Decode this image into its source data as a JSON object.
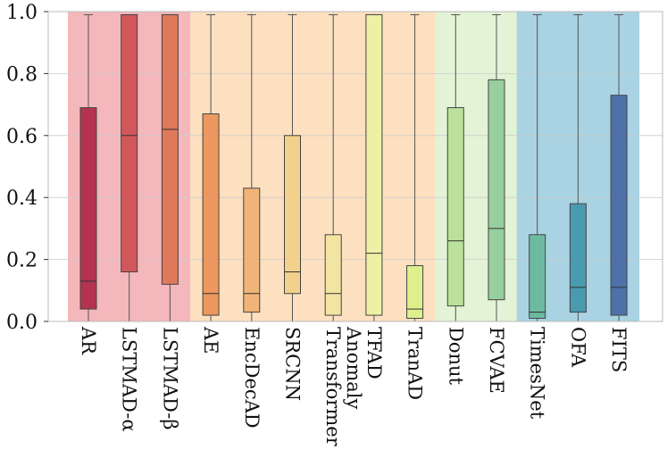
{
  "chart_data": {
    "type": "box",
    "title": "",
    "xlabel": "",
    "ylabel": "",
    "ylim": [
      0.0,
      1.0
    ],
    "yticks": [
      "0.0",
      "0.2",
      "0.4",
      "0.6",
      "0.8",
      "1.0"
    ],
    "grid": true,
    "groups": [
      {
        "color": "#f4b7bb",
        "start": 0,
        "end": 2
      },
      {
        "color": "#fde0c0",
        "start": 3,
        "end": 8
      },
      {
        "color": "#e3f3d5",
        "start": 9,
        "end": 10
      },
      {
        "color": "#a9d3e3",
        "start": 11,
        "end": 13
      }
    ],
    "categories": [
      {
        "label": "AR",
        "min": 0.0,
        "q1": 0.04,
        "median": 0.13,
        "q3": 0.69,
        "max": 0.99,
        "color": "#b33350"
      },
      {
        "label": "LSTMAD-α",
        "min": 0.0,
        "q1": 0.16,
        "median": 0.6,
        "q3": 0.99,
        "max": 0.99,
        "color": "#d2575a"
      },
      {
        "label": "LSTMAD-β",
        "min": 0.0,
        "q1": 0.12,
        "median": 0.62,
        "q3": 0.99,
        "max": 0.99,
        "color": "#e0795b"
      },
      {
        "label": "AE",
        "min": 0.0,
        "q1": 0.02,
        "median": 0.09,
        "q3": 0.67,
        "max": 0.99,
        "color": "#ed9860"
      },
      {
        "label": "EncDecAD",
        "min": 0.0,
        "q1": 0.03,
        "median": 0.09,
        "q3": 0.43,
        "max": 0.99,
        "color": "#f1b478"
      },
      {
        "label": "SRCNN",
        "min": 0.0,
        "q1": 0.09,
        "median": 0.16,
        "q3": 0.6,
        "max": 0.99,
        "color": "#f3d08c"
      },
      {
        "label": "Anomaly Transformer",
        "min": 0.0,
        "q1": 0.02,
        "median": 0.09,
        "q3": 0.28,
        "max": 0.99,
        "color": "#f2e5a3"
      },
      {
        "label": "TFAD",
        "min": 0.0,
        "q1": 0.02,
        "median": 0.22,
        "q3": 0.99,
        "max": 0.99,
        "color": "#eef0a5"
      },
      {
        "label": "TranAD",
        "min": 0.0,
        "q1": 0.01,
        "median": 0.04,
        "q3": 0.18,
        "max": 0.99,
        "color": "#def08c"
      },
      {
        "label": "Donut",
        "min": 0.0,
        "q1": 0.05,
        "median": 0.26,
        "q3": 0.69,
        "max": 0.99,
        "color": "#bbe19c"
      },
      {
        "label": "FCVAE",
        "min": 0.0,
        "q1": 0.07,
        "median": 0.3,
        "q3": 0.78,
        "max": 0.99,
        "color": "#98cf9f"
      },
      {
        "label": "TimesNet",
        "min": 0.0,
        "q1": 0.01,
        "median": 0.03,
        "q3": 0.28,
        "max": 0.99,
        "color": "#6cbba0"
      },
      {
        "label": "OFA",
        "min": 0.0,
        "q1": 0.03,
        "median": 0.11,
        "q3": 0.38,
        "max": 0.99,
        "color": "#4a9bb0"
      },
      {
        "label": "FITS",
        "min": 0.0,
        "q1": 0.02,
        "median": 0.11,
        "q3": 0.73,
        "max": 0.99,
        "color": "#4f71a8"
      }
    ]
  }
}
